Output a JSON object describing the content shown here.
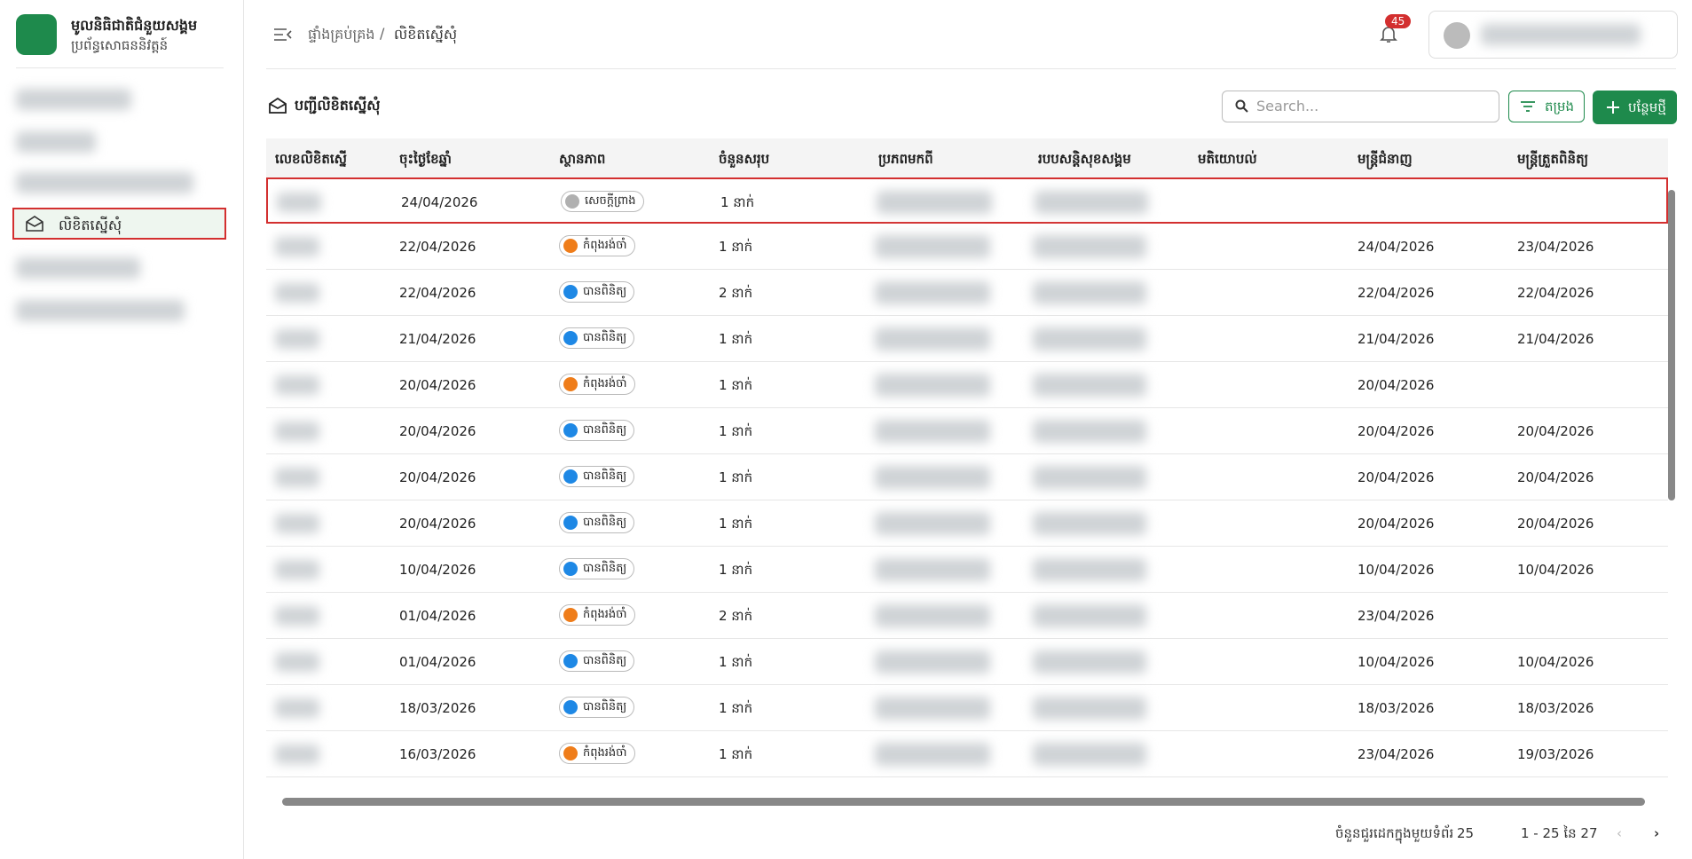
{
  "brand": {
    "title": "មូលនិធិជាតិជំនួយសង្គម",
    "subtitle": "ប្រព័ន្ធសោធននិវត្តន៍"
  },
  "sidebar": {
    "active_item": "លិខិតស្នើសុំ"
  },
  "breadcrumb": [
    "ផ្ទាំងគ្រប់គ្រង",
    "លិខិតស្នើសុំ"
  ],
  "breadcrumb_separator": "/",
  "notifications": 45,
  "page_title": "បញ្ជីលិខិតស្នើសុំ",
  "search_placeholder": "Search...",
  "filter_button": "តម្រង",
  "add_button": "បន្ថែមថ្មី",
  "table": {
    "columns": [
      "លេខលិខិតស្នើ",
      "ចុះថ្ងៃខែឆ្នាំ",
      "ស្ថានភាព",
      "ចំនួនសរុប",
      "ប្រភពមកពី",
      "របបសន្តិសុខសង្គម",
      "មតិយោបល់",
      "មន្ត្រីជំនាញ",
      "មន្ត្រីត្រួតពិនិត្យ"
    ],
    "rows": [
      {
        "date": "24/04/2026",
        "status": "សេចក្តីព្រាង",
        "status_color": "#b0b0b0",
        "total": "1 នាក់",
        "officer_date": null,
        "reviewer_date": null
      },
      {
        "date": "22/04/2026",
        "status": "កំពុងរង់ចាំ",
        "status_color": "#ef7d1a",
        "total": "1 នាក់",
        "officer_date": "24/04/2026",
        "reviewer_date": "23/04/2026"
      },
      {
        "date": "22/04/2026",
        "status": "បានពិនិត្យ",
        "status_color": "#1e88e5",
        "total": "2 នាក់",
        "officer_date": "22/04/2026",
        "reviewer_date": "22/04/2026"
      },
      {
        "date": "21/04/2026",
        "status": "បានពិនិត្យ",
        "status_color": "#1e88e5",
        "total": "1 នាក់",
        "officer_date": "21/04/2026",
        "reviewer_date": "21/04/2026"
      },
      {
        "date": "20/04/2026",
        "status": "កំពុងរង់ចាំ",
        "status_color": "#ef7d1a",
        "total": "1 នាក់",
        "officer_date": "20/04/2026",
        "reviewer_date": null
      },
      {
        "date": "20/04/2026",
        "status": "បានពិនិត្យ",
        "status_color": "#1e88e5",
        "total": "1 នាក់",
        "officer_date": "20/04/2026",
        "reviewer_date": "20/04/2026"
      },
      {
        "date": "20/04/2026",
        "status": "បានពិនិត្យ",
        "status_color": "#1e88e5",
        "total": "1 នាក់",
        "officer_date": "20/04/2026",
        "reviewer_date": "20/04/2026"
      },
      {
        "date": "20/04/2026",
        "status": "បានពិនិត្យ",
        "status_color": "#1e88e5",
        "total": "1 នាក់",
        "officer_date": "20/04/2026",
        "reviewer_date": "20/04/2026"
      },
      {
        "date": "10/04/2026",
        "status": "បានពិនិត្យ",
        "status_color": "#1e88e5",
        "total": "1 នាក់",
        "officer_date": "10/04/2026",
        "reviewer_date": "10/04/2026"
      },
      {
        "date": "01/04/2026",
        "status": "កំពុងរង់ចាំ",
        "status_color": "#ef7d1a",
        "total": "2 នាក់",
        "officer_date": "23/04/2026",
        "reviewer_date": null
      },
      {
        "date": "01/04/2026",
        "status": "បានពិនិត្យ",
        "status_color": "#1e88e5",
        "total": "1 នាក់",
        "officer_date": "10/04/2026",
        "reviewer_date": "10/04/2026"
      },
      {
        "date": "18/03/2026",
        "status": "បានពិនិត្យ",
        "status_color": "#1e88e5",
        "total": "1 នាក់",
        "officer_date": "18/03/2026",
        "reviewer_date": "18/03/2026"
      },
      {
        "date": "16/03/2026",
        "status": "កំពុងរង់ចាំ",
        "status_color": "#ef7d1a",
        "total": "1 នាក់",
        "officer_date": "23/04/2026",
        "reviewer_date": "19/03/2026"
      }
    ]
  },
  "pagination": {
    "rows_per_page_label": "ចំនួនជួរដេកក្នុងមួយទំព័រ",
    "rows_per_page": 25,
    "range": "1 - 25 នៃ 27"
  }
}
